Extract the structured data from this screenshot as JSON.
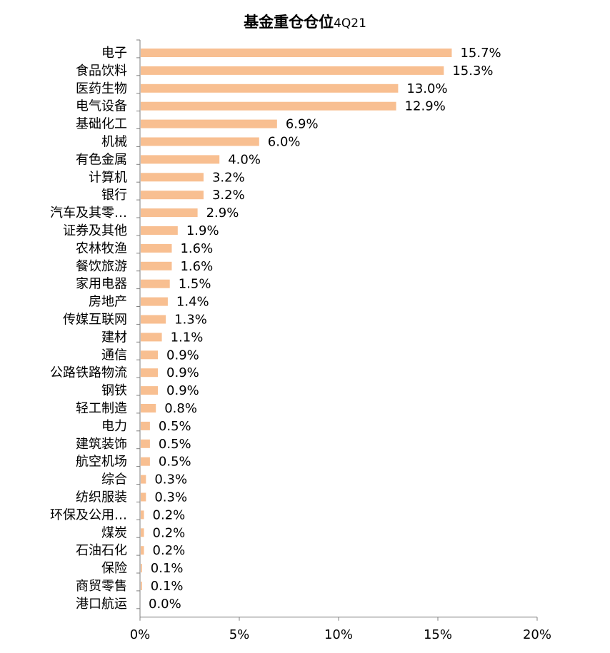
{
  "chart_data": {
    "type": "bar",
    "orientation": "horizontal",
    "title": "基金重仓仓位",
    "subtitle": "4Q21",
    "bar_color": "#F8BF91",
    "categories": [
      "电子",
      "食品饮料",
      "医药生物",
      "电气设备",
      "基础化工",
      "机械",
      "有色金属",
      "计算机",
      "银行",
      "汽车及其零…",
      "证券及其他",
      "农林牧渔",
      "餐饮旅游",
      "家用电器",
      "房地产",
      "传媒互联网",
      "建材",
      "通信",
      "公路铁路物流",
      "钢铁",
      "轻工制造",
      "电力",
      "建筑装饰",
      "航空机场",
      "综合",
      "纺织服装",
      "环保及公用…",
      "煤炭",
      "石油石化",
      "保险",
      "商贸零售",
      "港口航运"
    ],
    "values": [
      15.7,
      15.3,
      13.0,
      12.9,
      6.9,
      6.0,
      4.0,
      3.2,
      3.2,
      2.9,
      1.9,
      1.6,
      1.6,
      1.5,
      1.4,
      1.3,
      1.1,
      0.9,
      0.9,
      0.9,
      0.8,
      0.5,
      0.5,
      0.5,
      0.3,
      0.3,
      0.2,
      0.2,
      0.2,
      0.1,
      0.1,
      0.0
    ],
    "value_labels": [
      "15.7%",
      "15.3%",
      "13.0%",
      "12.9%",
      "6.9%",
      "6.0%",
      "4.0%",
      "3.2%",
      "3.2%",
      "2.9%",
      "1.9%",
      "1.6%",
      "1.6%",
      "1.5%",
      "1.4%",
      "1.3%",
      "1.1%",
      "0.9%",
      "0.9%",
      "0.9%",
      "0.8%",
      "0.5%",
      "0.5%",
      "0.5%",
      "0.3%",
      "0.3%",
      "0.2%",
      "0.2%",
      "0.2%",
      "0.1%",
      "0.1%",
      "0.0%"
    ],
    "xlim": [
      0,
      20
    ],
    "xticks": [
      0,
      5,
      10,
      15,
      20
    ],
    "xtick_labels": [
      "0%",
      "5%",
      "10%",
      "15%",
      "20%"
    ],
    "grid": false,
    "legend": "none"
  }
}
